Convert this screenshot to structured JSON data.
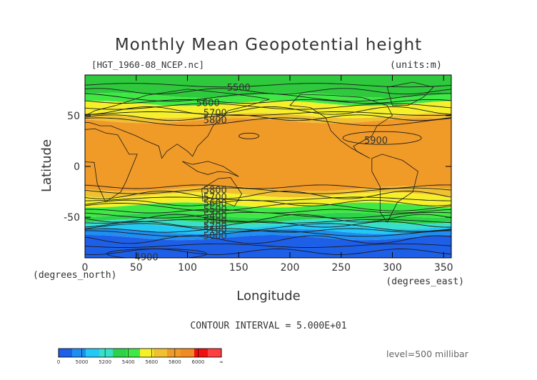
{
  "chart_data": {
    "type": "contour",
    "title": "Monthly Mean Geopotential height",
    "file_label": "[HGT_1960-08_NCEP.nc]",
    "units_label": "(units:m)",
    "xlabel": "Longitude",
    "ylabel": "Latitude",
    "x_unit_label": "(degrees_east)",
    "y_unit_label": "(degrees_north)",
    "xlim": [
      0,
      357.5
    ],
    "ylim": [
      -90,
      90
    ],
    "x_ticks": [
      0,
      50,
      100,
      150,
      200,
      250,
      300,
      350
    ],
    "y_ticks": [
      50,
      0,
      -50
    ],
    "contour_interval_text": "CONTOUR INTERVAL = 5.000E+01",
    "level_text": "level=500 millibar",
    "contour_labels": [
      {
        "text": "5500",
        "lon": 150,
        "lat": 78
      },
      {
        "text": "5600",
        "lon": 120,
        "lat": 63
      },
      {
        "text": "5700",
        "lon": 127,
        "lat": 53
      },
      {
        "text": "5800",
        "lon": 127,
        "lat": 46
      },
      {
        "text": "5900",
        "lon": 284,
        "lat": 26
      },
      {
        "text": "5800",
        "lon": 127,
        "lat": -23
      },
      {
        "text": "5700",
        "lon": 127,
        "lat": -30
      },
      {
        "text": "5600",
        "lon": 127,
        "lat": -36
      },
      {
        "text": "5500",
        "lon": 127,
        "lat": -42
      },
      {
        "text": "5400",
        "lon": 127,
        "lat": -48
      },
      {
        "text": "5300",
        "lon": 127,
        "lat": -53
      },
      {
        "text": "5200",
        "lon": 127,
        "lat": -58
      },
      {
        "text": "5100",
        "lon": 127,
        "lat": -62
      },
      {
        "text": "5000",
        "lon": 127,
        "lat": -68
      },
      {
        "text": "4900",
        "lon": 60,
        "lat": -89
      }
    ],
    "colorbar": {
      "labels": [
        "0",
        "5000",
        "5200",
        "5400",
        "5600",
        "5800",
        "6000",
        "∞"
      ],
      "colors": [
        "#1e5fe8",
        "#1f8ef0",
        "#23c8f5",
        "#38e0c8",
        "#2ed24a",
        "#3fe844",
        "#f5f02a",
        "#f0c030",
        "#f09a28",
        "#f08a22",
        "#f01010",
        "#ff4040"
      ]
    },
    "bands": [
      {
        "lat_top": 90,
        "lat_bottom": 70,
        "color": "#2ec93c"
      },
      {
        "lat_top": 70,
        "lat_bottom": 62,
        "color": "#3fe844"
      },
      {
        "lat_top": 62,
        "lat_bottom": 50,
        "color": "#f5f02a"
      },
      {
        "lat_top": 50,
        "lat_bottom": 45,
        "color": "#f0c030"
      },
      {
        "lat_top": 45,
        "lat_bottom": -22,
        "color": "#f09a28"
      },
      {
        "lat_top": -22,
        "lat_bottom": -28,
        "color": "#f0c030"
      },
      {
        "lat_top": -28,
        "lat_bottom": -38,
        "color": "#f5f02a"
      },
      {
        "lat_top": -38,
        "lat_bottom": -48,
        "color": "#3fe844"
      },
      {
        "lat_top": -48,
        "lat_bottom": -54,
        "color": "#2ed24a"
      },
      {
        "lat_top": -54,
        "lat_bottom": -59,
        "color": "#38e0c8"
      },
      {
        "lat_top": -59,
        "lat_bottom": -64,
        "color": "#23c8f5"
      },
      {
        "lat_top": -64,
        "lat_bottom": -70,
        "color": "#1f8ef0"
      },
      {
        "lat_top": -70,
        "lat_bottom": -90,
        "color": "#1e5fe8"
      }
    ]
  }
}
